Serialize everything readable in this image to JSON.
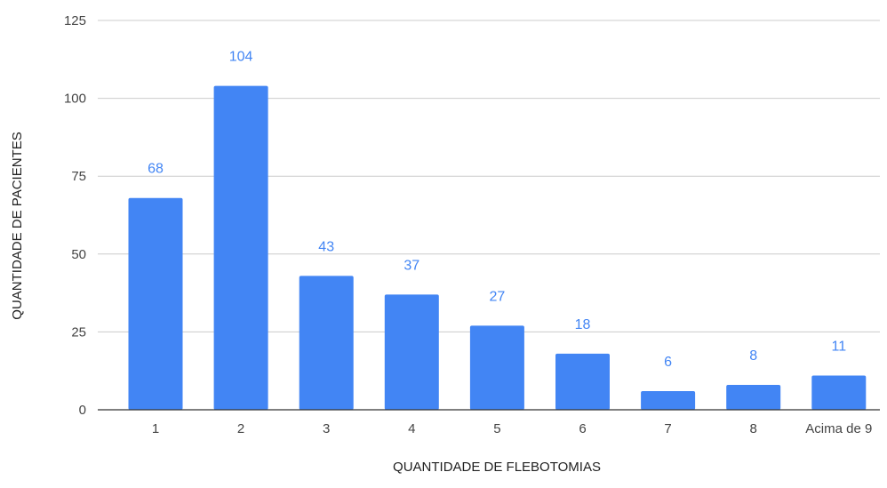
{
  "chart_data": {
    "type": "bar",
    "title": "",
    "xlabel": "QUANTIDADE DE FLEBOTOMIAS",
    "ylabel": "QUANTIDADE DE PACIENTES",
    "categories": [
      "1",
      "2",
      "3",
      "4",
      "5",
      "6",
      "7",
      "8",
      "Acima de 9"
    ],
    "values": [
      68,
      104,
      43,
      37,
      27,
      18,
      6,
      8,
      11
    ],
    "data_labels": [
      "68",
      "104",
      "43",
      "37",
      "27",
      "18",
      "6",
      "8",
      "11"
    ],
    "ylim": [
      0,
      125
    ],
    "yticks": [
      0,
      25,
      50,
      75,
      100,
      125
    ],
    "ytick_labels": [
      "0",
      "25",
      "50",
      "75",
      "100",
      "125"
    ],
    "grid": true,
    "legend": "none",
    "colors": {
      "bar": "#4285f4",
      "data_label": "#4285f4",
      "grid": "#cccccc",
      "baseline": "#333333"
    }
  }
}
